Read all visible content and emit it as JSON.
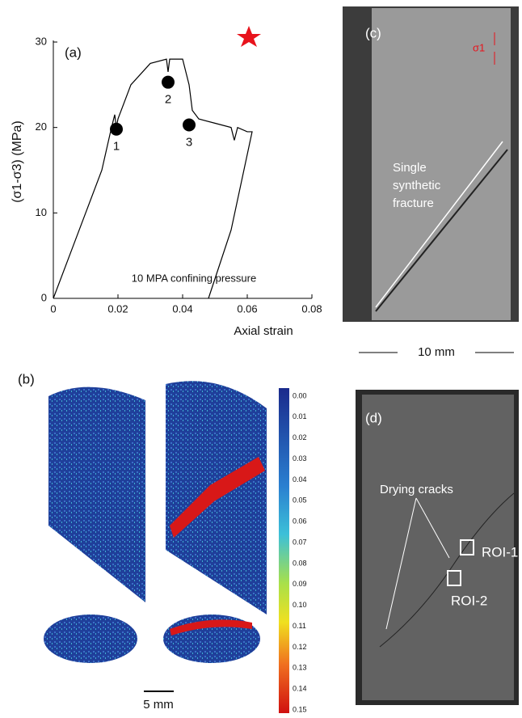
{
  "chart_data": {
    "type": "line",
    "panel_label": "(a)",
    "xlabel": "Axial strain",
    "ylabel": "(σ1-σ3) (MPa)",
    "annotation": "10 MPA confining pressure",
    "color": "#000000",
    "x": [
      0,
      0.005,
      0.01,
      0.015,
      0.018,
      0.019,
      0.0195,
      0.02,
      0.024,
      0.03,
      0.035,
      0.0355,
      0.036,
      0.04,
      0.042,
      0.043,
      0.045,
      0.05,
      0.055,
      0.056,
      0.057,
      0.06,
      0.0615,
      0.055,
      0.048
    ],
    "values": [
      0,
      5,
      10,
      15,
      20,
      21.5,
      20,
      21,
      25,
      27.5,
      28,
      26.5,
      28,
      28,
      25,
      22,
      21,
      20.5,
      20,
      18.5,
      20,
      19.5,
      19.5,
      8,
      0
    ],
    "markers": {
      "x": [
        0.0195,
        0.0355,
        0.042
      ],
      "values": [
        19.8,
        25.3,
        20.3
      ],
      "labels": [
        "1",
        "2",
        "3"
      ]
    },
    "xlim": [
      0,
      0.08
    ],
    "ylim": [
      0,
      30
    ],
    "xticks": [
      0,
      0.02,
      0.04,
      0.06,
      0.08
    ],
    "yticks": [
      0,
      10,
      20,
      30
    ]
  },
  "panel_b": {
    "label": "(b)",
    "scale_bar": "5 mm",
    "colorbar_labels": [
      "0.00",
      "0.01",
      "0.02",
      "0.03",
      "0.04",
      "0.05",
      "0.06",
      "0.07",
      "0.08",
      "0.09",
      "0.10",
      "0.11",
      "0.12",
      "0.13",
      "0.14",
      "0.15"
    ]
  },
  "panel_c": {
    "label": "(c)",
    "stress": "σ1",
    "note": [
      "Single",
      "synthetic",
      "fracture"
    ],
    "scale": "10 mm"
  },
  "panel_d": {
    "label": "(d)",
    "note": "Drying cracks",
    "roi": [
      "ROI-1",
      "ROI-2"
    ]
  }
}
